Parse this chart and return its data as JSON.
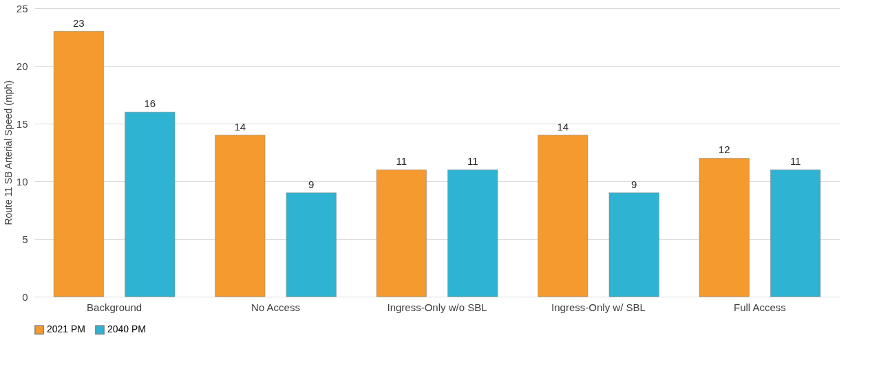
{
  "chart_data": {
    "type": "bar",
    "ylabel": "Route 11 SB Arterial Speed (mph)",
    "categories": [
      "Background",
      "No Access",
      "Ingress-Only w/o SBL",
      "Ingress-Only w/ SBL",
      "Full Access"
    ],
    "series": [
      {
        "name": "2021 PM",
        "color": "#f59a2e",
        "values": [
          23,
          14,
          11,
          14,
          12
        ]
      },
      {
        "name": "2040 PM",
        "color": "#2fb3d2",
        "values": [
          16,
          9,
          11,
          9,
          11
        ]
      }
    ],
    "ylim": [
      0,
      25
    ],
    "yticks": [
      0,
      5,
      10,
      15,
      20,
      25
    ],
    "grid": "y",
    "legend": "bottom",
    "data_labels": true
  }
}
